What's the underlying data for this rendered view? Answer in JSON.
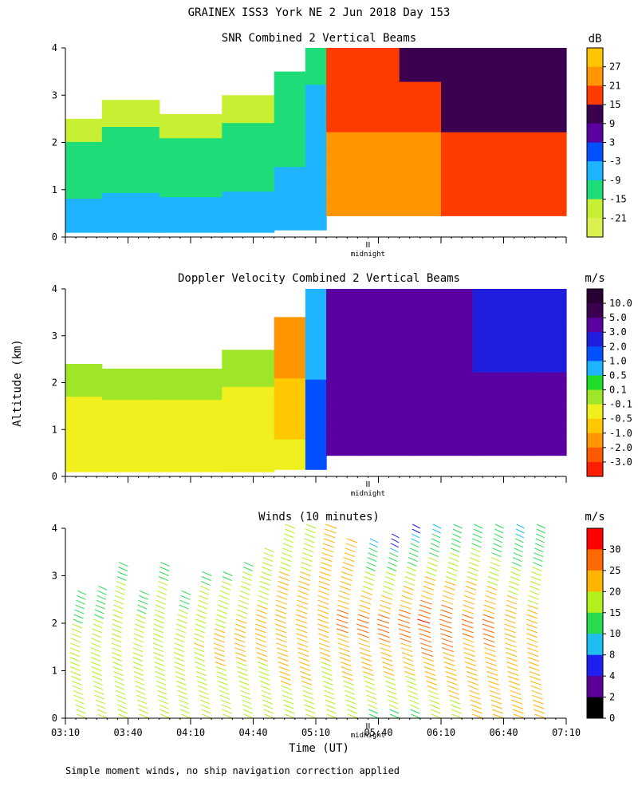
{
  "header": {
    "title": "GRAINEX ISS3 York NE   2 Jun 2018 Day 153"
  },
  "axes": {
    "ylabel": "Altitude (km)",
    "xlabel": "Time (UT)",
    "midnight_label": "midnight",
    "yticks": [
      "0",
      "1",
      "2",
      "3",
      "4"
    ],
    "xticks": [
      "03:10",
      "03:40",
      "04:10",
      "04:40",
      "05:10",
      "05:40",
      "06:10",
      "06:40",
      "07:10"
    ],
    "xlim": [
      "03:10",
      "07:10"
    ],
    "ylim": [
      0,
      4
    ]
  },
  "footer": {
    "note": "Simple moment winds, no ship navigation correction applied"
  },
  "chart_data": [
    {
      "type": "heatmap",
      "title": "SNR Combined 2 Vertical Beams",
      "colorbar_unit": "dB",
      "colorbar_labels": [
        "27",
        "21",
        "15",
        "9",
        "3",
        "-3",
        "-9",
        "-15",
        "-21"
      ],
      "colorbar_colors": [
        "#ffc400",
        "#ff9600",
        "#ff3c00",
        "#3c0050",
        "#5a00a0",
        "#0050ff",
        "#1eb4ff",
        "#1edc78",
        "#c8f032",
        "#dcf050"
      ],
      "x_range": [
        "03:10",
        "07:10"
      ],
      "y_range_km": [
        0,
        4
      ],
      "time_series": [
        {
          "time": "03:15",
          "bottom_km": 0.1,
          "top_km": 2.5,
          "snr_low_dB": -3,
          "snr_mid_dB": -12,
          "snr_top_dB": -18
        },
        {
          "time": "03:40",
          "bottom_km": 0.1,
          "top_km": 2.9,
          "snr_low_dB": -3,
          "snr_mid_dB": -12,
          "snr_top_dB": -18
        },
        {
          "time": "04:10",
          "bottom_km": 0.1,
          "top_km": 2.6,
          "snr_low_dB": -3,
          "snr_mid_dB": -12,
          "snr_top_dB": -18
        },
        {
          "time": "04:40",
          "bottom_km": 0.1,
          "top_km": 3.0,
          "snr_low_dB": -3,
          "snr_mid_dB": -12,
          "snr_top_dB": -18
        },
        {
          "time": "05:00",
          "bottom_km": 0.15,
          "top_km": 3.5,
          "snr_low_dB": -3,
          "snr_mid_dB": -10,
          "snr_top_dB": -15
        },
        {
          "time": "05:10",
          "bottom_km": 0.15,
          "top_km": 4.0,
          "snr_low_dB": -3,
          "snr_mid_dB": -6,
          "snr_top_dB": -12
        },
        {
          "time": "05:20",
          "bottom_km": 0.45,
          "top_km": 4.0,
          "snr_low_dB": 27,
          "snr_mid_dB": 21,
          "snr_top_dB": 15
        },
        {
          "time": "05:40",
          "bottom_km": 0.45,
          "top_km": 4.0,
          "snr_low_dB": 27,
          "snr_mid_dB": 21,
          "snr_top_dB": 15
        },
        {
          "time": "06:00",
          "bottom_km": 0.45,
          "top_km": 4.0,
          "snr_low_dB": 27,
          "snr_mid_dB": 21,
          "snr_top_dB": 9
        },
        {
          "time": "06:20",
          "bottom_km": 0.45,
          "top_km": 4.0,
          "snr_low_dB": 21,
          "snr_mid_dB": 15,
          "snr_top_dB": 9
        },
        {
          "time": "06:40",
          "bottom_km": 0.45,
          "top_km": 4.0,
          "snr_low_dB": 21,
          "snr_mid_dB": 15,
          "snr_top_dB": 9
        },
        {
          "time": "07:05",
          "bottom_km": 0.45,
          "top_km": 4.0,
          "snr_low_dB": 21,
          "snr_mid_dB": 15,
          "snr_top_dB": 9
        }
      ]
    },
    {
      "type": "heatmap",
      "title": "Doppler Velocity Combined 2 Vertical Beams",
      "colorbar_unit": "m/s",
      "colorbar_labels": [
        "10.0",
        "5.0",
        "3.0",
        "2.0",
        "1.0",
        "0.5",
        "0.1",
        "-0.1",
        "-0.5",
        "-1.0",
        "-2.0",
        "-3.0"
      ],
      "colorbar_colors": [
        "#280032",
        "#3c0050",
        "#5a00a0",
        "#1e1edc",
        "#0050ff",
        "#1eb4ff",
        "#1edc28",
        "#a0e628",
        "#f0f01e",
        "#ffc800",
        "#ff9600",
        "#ff5a00",
        "#ff1e00"
      ],
      "x_range": [
        "03:10",
        "07:10"
      ],
      "y_range_km": [
        0,
        4
      ],
      "time_series": [
        {
          "time": "03:15",
          "bottom_km": 0.1,
          "top_km": 2.4,
          "vel_low_ms": -0.1,
          "vel_mid_ms": -0.3,
          "vel_top_ms": 0.1
        },
        {
          "time": "03:40",
          "bottom_km": 0.1,
          "top_km": 2.3,
          "vel_low_ms": -0.1,
          "vel_mid_ms": -0.3,
          "vel_top_ms": 0.1
        },
        {
          "time": "04:10",
          "bottom_km": 0.1,
          "top_km": 2.3,
          "vel_low_ms": -0.1,
          "vel_mid_ms": -0.3,
          "vel_top_ms": 0.1
        },
        {
          "time": "04:40",
          "bottom_km": 0.1,
          "top_km": 2.7,
          "vel_low_ms": -0.1,
          "vel_mid_ms": -0.3,
          "vel_top_ms": 0.1
        },
        {
          "time": "05:00",
          "bottom_km": 0.15,
          "top_km": 3.4,
          "vel_low_ms": -0.3,
          "vel_mid_ms": -0.8,
          "vel_top_ms": -2.0
        },
        {
          "time": "05:10",
          "bottom_km": 0.15,
          "top_km": 4.0,
          "vel_low_ms": 2.0,
          "vel_mid_ms": 1.0,
          "vel_top_ms": 0.5
        },
        {
          "time": "05:20",
          "bottom_km": 0.45,
          "top_km": 4.0,
          "vel_low_ms": 3.0,
          "vel_mid_ms": 3.0,
          "vel_top_ms": 3.0
        },
        {
          "time": "05:40",
          "bottom_km": 0.45,
          "top_km": 4.0,
          "vel_low_ms": 3.0,
          "vel_mid_ms": 3.0,
          "vel_top_ms": 5.0
        },
        {
          "time": "06:10",
          "bottom_km": 0.45,
          "top_km": 4.0,
          "vel_low_ms": 3.0,
          "vel_mid_ms": 3.0,
          "vel_top_ms": 3.0
        },
        {
          "time": "06:40",
          "bottom_km": 0.45,
          "top_km": 4.0,
          "vel_low_ms": 3.0,
          "vel_mid_ms": 3.0,
          "vel_top_ms": 2.0
        },
        {
          "time": "07:05",
          "bottom_km": 0.45,
          "top_km": 4.0,
          "vel_low_ms": 3.0,
          "vel_mid_ms": 3.0,
          "vel_top_ms": 2.0
        }
      ]
    },
    {
      "type": "scatter",
      "title": "Winds (10 minutes)",
      "colorbar_unit": "m/s",
      "colorbar_labels": [
        "30",
        "25",
        "20",
        "15",
        "10",
        "8",
        "4",
        "2",
        "0"
      ],
      "colorbar_colors": [
        "#ff0000",
        "#ff6a00",
        "#ffb400",
        "#b4f01e",
        "#28dc50",
        "#1ebef0",
        "#1e1ef0",
        "#5a0096",
        "#000000"
      ],
      "x_range": [
        "03:10",
        "07:10"
      ],
      "y_range_km": [
        0,
        4
      ],
      "profiles": [
        {
          "time": "03:20",
          "top_km": 2.6,
          "speed_low_ms": 15,
          "speed_mid_ms": 18,
          "speed_top_ms": 12
        },
        {
          "time": "03:30",
          "top_km": 2.7,
          "speed_low_ms": 15,
          "speed_mid_ms": 18,
          "speed_top_ms": 12
        },
        {
          "time": "03:40",
          "top_km": 3.2,
          "speed_low_ms": 15,
          "speed_mid_ms": 18,
          "speed_top_ms": 14
        },
        {
          "time": "03:50",
          "top_km": 2.6,
          "speed_low_ms": 15,
          "speed_mid_ms": 17,
          "speed_top_ms": 14
        },
        {
          "time": "04:00",
          "top_km": 3.2,
          "speed_low_ms": 15,
          "speed_mid_ms": 18,
          "speed_top_ms": 14
        },
        {
          "time": "04:10",
          "top_km": 2.6,
          "speed_low_ms": 15,
          "speed_mid_ms": 18,
          "speed_top_ms": 14
        },
        {
          "time": "04:20",
          "top_km": 3.0,
          "speed_low_ms": 15,
          "speed_mid_ms": 20,
          "speed_top_ms": 14
        },
        {
          "time": "04:30",
          "top_km": 3.0,
          "speed_low_ms": 15,
          "speed_mid_ms": 22,
          "speed_top_ms": 14
        },
        {
          "time": "04:40",
          "top_km": 3.2,
          "speed_low_ms": 15,
          "speed_mid_ms": 22,
          "speed_top_ms": 14
        },
        {
          "time": "04:50",
          "top_km": 3.5,
          "speed_low_ms": 16,
          "speed_mid_ms": 22,
          "speed_top_ms": 16
        },
        {
          "time": "05:00",
          "top_km": 4.0,
          "speed_low_ms": 18,
          "speed_mid_ms": 24,
          "speed_top_ms": 16
        },
        {
          "time": "05:10",
          "top_km": 4.0,
          "speed_low_ms": 18,
          "speed_mid_ms": 24,
          "speed_top_ms": 16
        },
        {
          "time": "05:20",
          "top_km": 4.0,
          "speed_low_ms": 17,
          "speed_mid_ms": 22,
          "speed_top_ms": 24
        },
        {
          "time": "05:30",
          "top_km": 3.8,
          "speed_low_ms": 16,
          "speed_mid_ms": 26,
          "speed_top_ms": 20
        },
        {
          "time": "05:40",
          "top_km": 3.8,
          "speed_low_ms": 14,
          "speed_mid_ms": 27,
          "speed_top_ms": 8
        },
        {
          "time": "05:50",
          "top_km": 3.9,
          "speed_low_ms": 14,
          "speed_mid_ms": 28,
          "speed_top_ms": 4
        },
        {
          "time": "06:00",
          "top_km": 4.0,
          "speed_low_ms": 14,
          "speed_mid_ms": 28,
          "speed_top_ms": 6
        },
        {
          "time": "06:10",
          "top_km": 4.0,
          "speed_low_ms": 16,
          "speed_mid_ms": 30,
          "speed_top_ms": 8
        },
        {
          "time": "06:20",
          "top_km": 4.0,
          "speed_low_ms": 18,
          "speed_mid_ms": 28,
          "speed_top_ms": 10
        },
        {
          "time": "06:30",
          "top_km": 4.0,
          "speed_low_ms": 20,
          "speed_mid_ms": 26,
          "speed_top_ms": 12
        },
        {
          "time": "06:40",
          "top_km": 4.0,
          "speed_low_ms": 22,
          "speed_mid_ms": 26,
          "speed_top_ms": 10
        },
        {
          "time": "06:50",
          "top_km": 4.0,
          "speed_low_ms": 24,
          "speed_mid_ms": 24,
          "speed_top_ms": 8
        },
        {
          "time": "07:00",
          "top_km": 4.0,
          "speed_low_ms": 22,
          "speed_mid_ms": 22,
          "speed_top_ms": 10
        }
      ]
    }
  ]
}
